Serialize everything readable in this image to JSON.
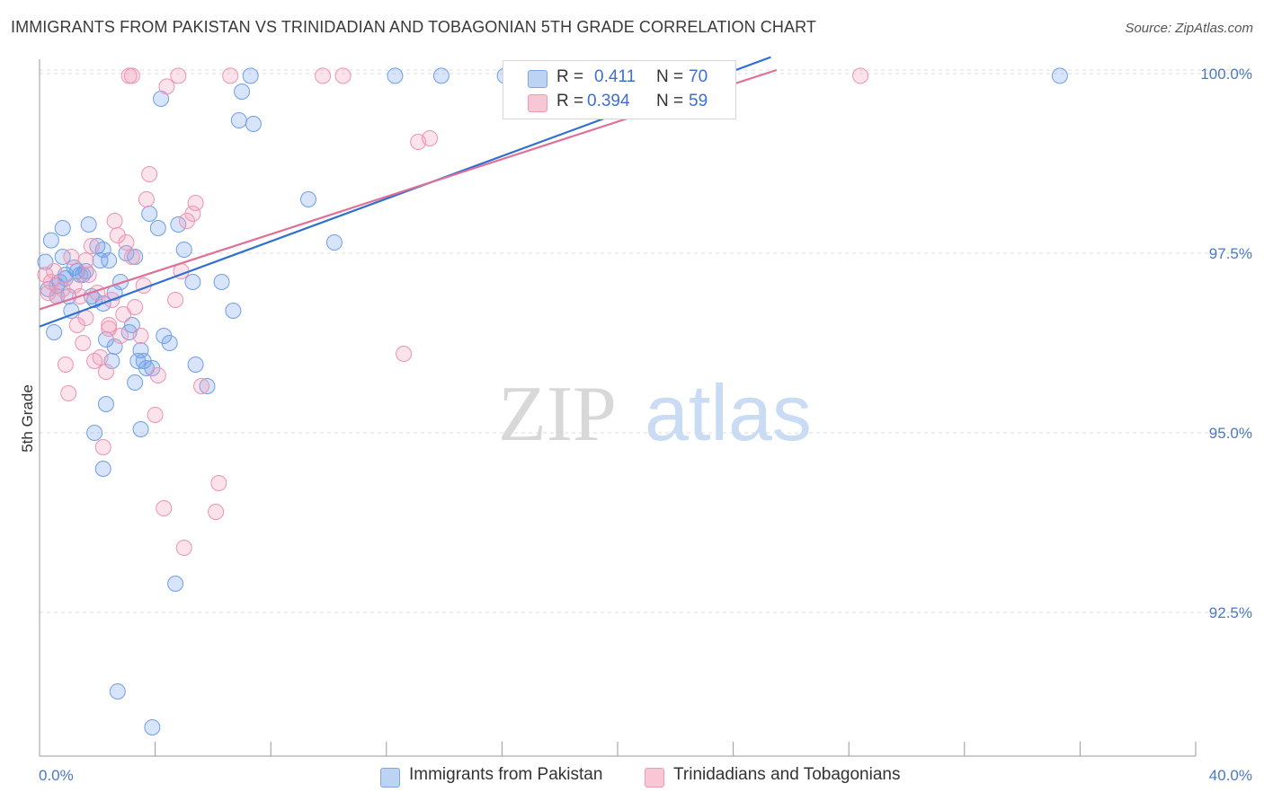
{
  "title": "IMMIGRANTS FROM PAKISTAN VS TRINIDADIAN AND TOBAGONIAN 5TH GRADE CORRELATION CHART",
  "source": "Source: ZipAtlas.com",
  "watermark": {
    "zip": "ZIP",
    "atlas": "atlas"
  },
  "legend": {
    "series1": {
      "r_label": "R =",
      "r_value": "0.411",
      "n_label": "N =",
      "n_value": "70"
    },
    "series2": {
      "r_label": "R =",
      "r_value": "0.394",
      "n_label": "N =",
      "n_value": "59"
    }
  },
  "bottom_legend": {
    "series1": "Immigrants from Pakistan",
    "series2": "Trinidadians and Tobagonians"
  },
  "colors": {
    "blue": "#6f9fe8",
    "blue_line": "#2f6fd0",
    "pink": "#f29ab6",
    "pink_line": "#e07098",
    "tick": "#4a78c8"
  },
  "chart_data": {
    "type": "scatter",
    "xlabel": "",
    "ylabel": "5th Grade",
    "xlim": [
      0,
      40
    ],
    "ylim": [
      90.5,
      100.2
    ],
    "x_tick_labels": {
      "0": "0.0%",
      "40": "40.0%"
    },
    "y_ticks": [
      100.0,
      97.5,
      95.0,
      92.5
    ],
    "y_tick_labels": [
      "100.0%",
      "97.5%",
      "95.0%",
      "92.5%"
    ],
    "series": [
      {
        "name": "Immigrants from Pakistan",
        "color": "#6f9fe8",
        "trend": {
          "x0": 0,
          "y0": 96.48,
          "x1": 25.3,
          "y1": 100.23
        },
        "points": [
          [
            0.2,
            97.38
          ],
          [
            0.4,
            97.68
          ],
          [
            0.6,
            97.05
          ],
          [
            0.8,
            97.45
          ],
          [
            0.9,
            97.2
          ],
          [
            1.0,
            96.9
          ],
          [
            0.7,
            97.1
          ],
          [
            0.3,
            97.0
          ],
          [
            0.5,
            96.4
          ],
          [
            1.2,
            97.3
          ],
          [
            1.5,
            97.2
          ],
          [
            1.6,
            97.25
          ],
          [
            1.7,
            97.9
          ],
          [
            1.8,
            96.9
          ],
          [
            1.1,
            96.7
          ],
          [
            0.8,
            97.85
          ],
          [
            2.0,
            97.6
          ],
          [
            2.1,
            97.4
          ],
          [
            2.2,
            96.8
          ],
          [
            2.4,
            97.4
          ],
          [
            2.3,
            96.3
          ],
          [
            2.5,
            96.0
          ],
          [
            2.6,
            96.2
          ],
          [
            2.8,
            97.1
          ],
          [
            3.0,
            97.5
          ],
          [
            3.2,
            96.5
          ],
          [
            3.1,
            96.4
          ],
          [
            3.4,
            96.0
          ],
          [
            3.5,
            96.15
          ],
          [
            3.6,
            96.0
          ],
          [
            3.7,
            95.9
          ],
          [
            3.8,
            98.05
          ],
          [
            4.1,
            97.85
          ],
          [
            3.3,
            95.7
          ],
          [
            3.5,
            95.05
          ],
          [
            3.9,
            95.9
          ],
          [
            4.3,
            96.35
          ],
          [
            4.8,
            97.9
          ],
          [
            5.0,
            97.55
          ],
          [
            5.3,
            97.1
          ],
          [
            5.4,
            95.95
          ],
          [
            5.8,
            95.65
          ],
          [
            6.3,
            97.1
          ],
          [
            6.7,
            96.7
          ],
          [
            6.9,
            99.35
          ],
          [
            7.4,
            99.3
          ],
          [
            7.0,
            99.75
          ],
          [
            7.3,
            99.97
          ],
          [
            9.3,
            98.25
          ],
          [
            10.2,
            97.65
          ],
          [
            12.3,
            99.97
          ],
          [
            13.9,
            99.97
          ],
          [
            16.1,
            99.97
          ],
          [
            35.3,
            99.97
          ],
          [
            2.3,
            95.4
          ],
          [
            1.9,
            95.0
          ],
          [
            2.2,
            94.5
          ],
          [
            4.7,
            92.9
          ],
          [
            2.7,
            91.4
          ],
          [
            3.9,
            90.9
          ],
          [
            4.2,
            99.65
          ],
          [
            2.6,
            96.95
          ],
          [
            0.6,
            96.9
          ],
          [
            1.4,
            97.2
          ],
          [
            2.2,
            97.55
          ],
          [
            3.3,
            97.45
          ],
          [
            1.9,
            96.85
          ],
          [
            4.5,
            96.25
          ],
          [
            1.3,
            97.25
          ],
          [
            0.9,
            97.15
          ]
        ]
      },
      {
        "name": "Trinidadians and Tobagonians",
        "color": "#f29ab6",
        "trend": {
          "x0": 0,
          "y0": 96.72,
          "x1": 25.5,
          "y1": 100.05
        },
        "points": [
          [
            0.2,
            97.2
          ],
          [
            0.4,
            97.1
          ],
          [
            0.6,
            96.9
          ],
          [
            0.5,
            97.25
          ],
          [
            0.8,
            97.0
          ],
          [
            0.9,
            95.95
          ],
          [
            1.0,
            95.55
          ],
          [
            1.1,
            97.45
          ],
          [
            1.2,
            97.05
          ],
          [
            1.3,
            96.5
          ],
          [
            1.5,
            96.25
          ],
          [
            1.6,
            97.4
          ],
          [
            1.7,
            97.2
          ],
          [
            1.8,
            97.6
          ],
          [
            1.9,
            96.0
          ],
          [
            2.0,
            96.95
          ],
          [
            2.1,
            96.05
          ],
          [
            2.3,
            95.85
          ],
          [
            2.4,
            96.45
          ],
          [
            2.5,
            96.85
          ],
          [
            2.6,
            97.95
          ],
          [
            2.7,
            97.75
          ],
          [
            2.8,
            96.35
          ],
          [
            2.9,
            96.65
          ],
          [
            3.0,
            97.65
          ],
          [
            3.2,
            97.45
          ],
          [
            3.3,
            96.75
          ],
          [
            3.5,
            96.35
          ],
          [
            3.6,
            97.05
          ],
          [
            3.7,
            98.25
          ],
          [
            3.8,
            98.6
          ],
          [
            4.0,
            95.25
          ],
          [
            4.1,
            95.8
          ],
          [
            4.4,
            99.82
          ],
          [
            4.3,
            93.95
          ],
          [
            4.7,
            96.85
          ],
          [
            4.9,
            97.25
          ],
          [
            5.1,
            97.95
          ],
          [
            5.3,
            98.05
          ],
          [
            5.4,
            98.2
          ],
          [
            5.6,
            95.65
          ],
          [
            6.2,
            94.3
          ],
          [
            6.1,
            93.9
          ],
          [
            3.1,
            99.97
          ],
          [
            3.2,
            99.97
          ],
          [
            4.8,
            99.97
          ],
          [
            6.6,
            99.97
          ],
          [
            9.8,
            99.97
          ],
          [
            10.5,
            99.97
          ],
          [
            13.1,
            99.05
          ],
          [
            13.5,
            99.1
          ],
          [
            12.6,
            96.1
          ],
          [
            28.4,
            99.97
          ],
          [
            2.2,
            94.8
          ],
          [
            5.0,
            93.4
          ],
          [
            0.3,
            96.95
          ],
          [
            1.4,
            96.9
          ],
          [
            2.4,
            96.5
          ],
          [
            1.6,
            96.6
          ]
        ]
      }
    ]
  }
}
